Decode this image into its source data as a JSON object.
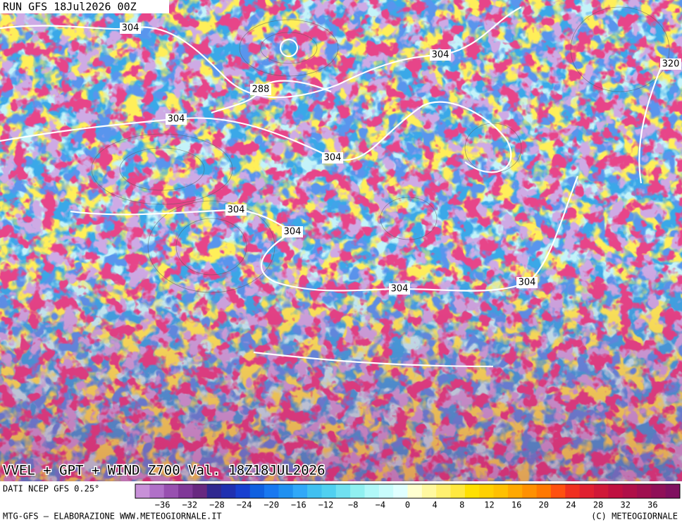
{
  "header": {
    "run": "RUN GFS 18Jul2026 00Z"
  },
  "map": {
    "contour_labels": [
      "304",
      "304",
      "288",
      "304",
      "304",
      "304",
      "304",
      "304",
      "304",
      "320"
    ],
    "title": "VVEL + GPT + WIND Z700 Val. 18Z18JUL2026"
  },
  "legend": {
    "source": "DATI NCEP GFS 0.25°",
    "ticks": [
      "−36",
      "−32",
      "−28",
      "−24",
      "−20",
      "−16",
      "−12",
      "−8",
      "−4",
      "0",
      "4",
      "8",
      "12",
      "16",
      "20",
      "24",
      "28",
      "32",
      "36"
    ],
    "colors": [
      "#c890d8",
      "#b070c8",
      "#9850b0",
      "#803898",
      "#682880",
      "#302890",
      "#2030b0",
      "#1840d0",
      "#1060e0",
      "#1878f0",
      "#2090f0",
      "#30a8f8",
      "#40c0f0",
      "#50d0f0",
      "#70e0f0",
      "#90f0f0",
      "#b0f8f8",
      "#c8fcfc",
      "#e0ffff",
      "#ffffd0",
      "#fff8a0",
      "#fff070",
      "#ffe840",
      "#ffe000",
      "#ffd000",
      "#ffc000",
      "#ffa800",
      "#ff9000",
      "#ff7800",
      "#ff5010",
      "#f03020",
      "#e02030",
      "#d01838",
      "#c01040",
      "#b01048",
      "#a01050",
      "#901058",
      "#801060"
    ]
  },
  "footer": {
    "left": "MTG-GFS – ELABORAZIONE WWW.METEOGIORNALE.IT",
    "right": "(C) METEOGIORNALE"
  }
}
